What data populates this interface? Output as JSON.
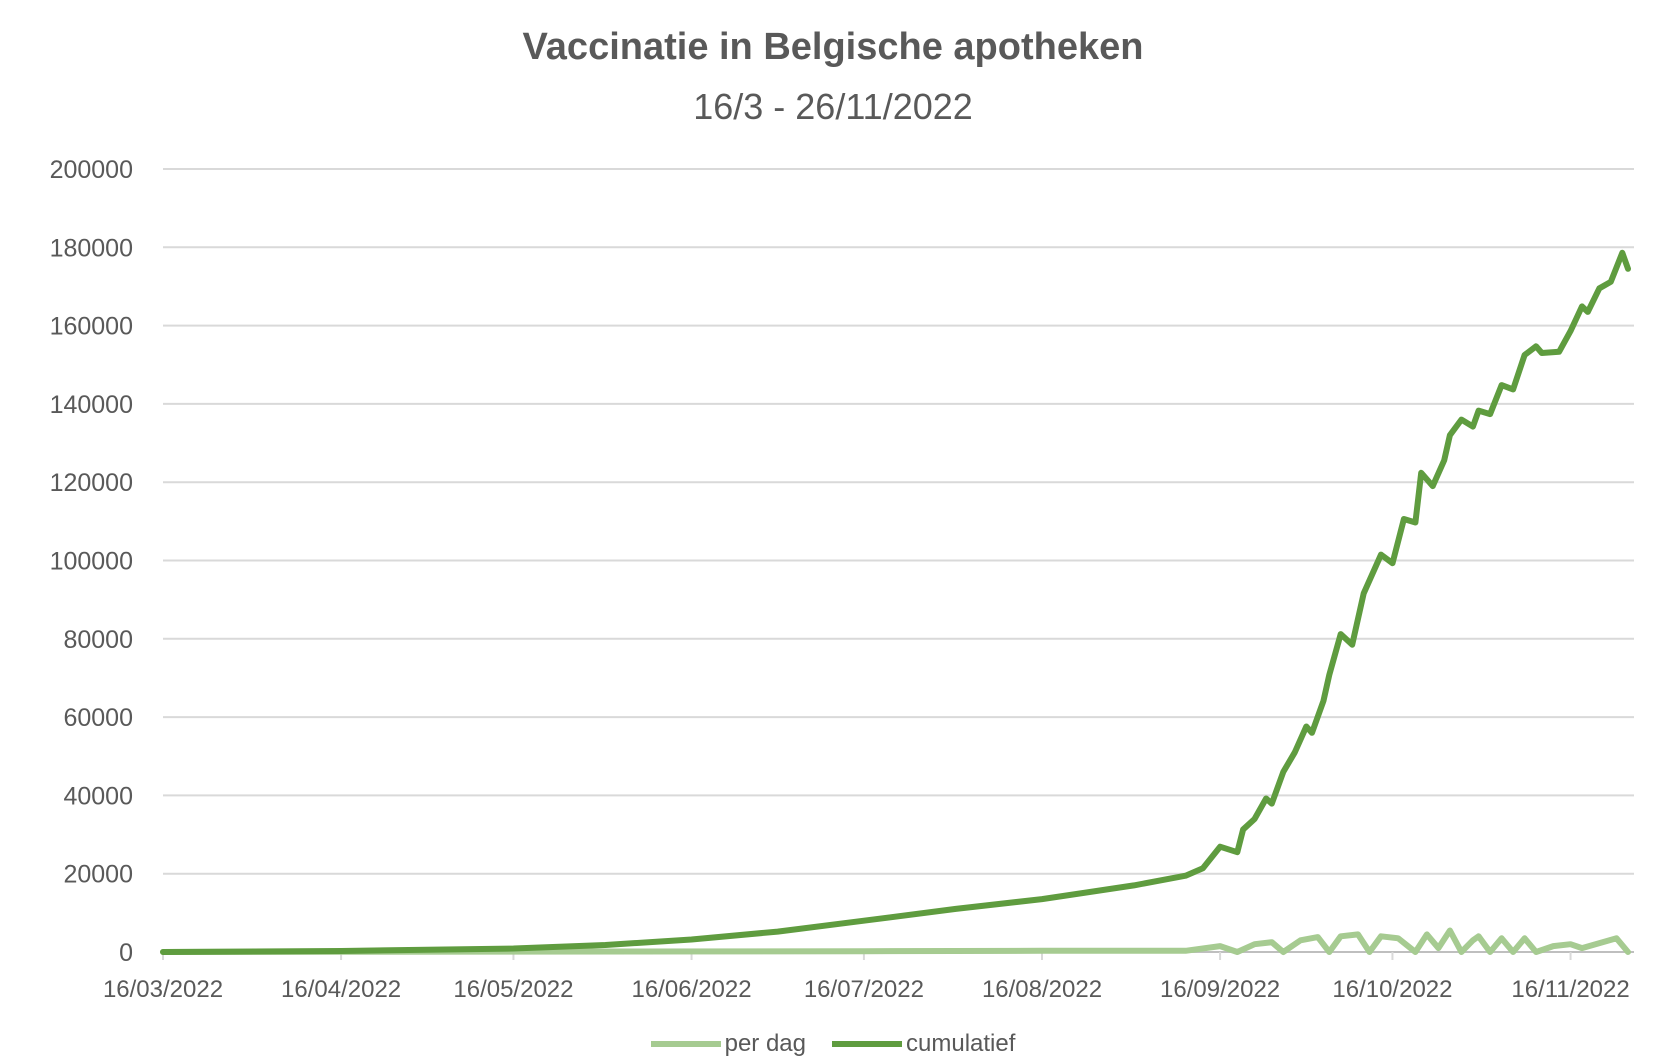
{
  "chart_data": {
    "type": "line",
    "title": "Vaccinatie in Belgische apotheken",
    "subtitle": "16/3 - 26/11/2022",
    "xlabel": "",
    "ylabel": "",
    "ylim": [
      0,
      200000
    ],
    "yticks": [
      "0",
      "20000",
      "40000",
      "60000",
      "80000",
      "100000",
      "120000",
      "140000",
      "160000",
      "180000",
      "200000"
    ],
    "xticks": [
      "16/03/2022",
      "16/04/2022",
      "16/05/2022",
      "16/06/2022",
      "16/07/2022",
      "16/08/2022",
      "16/09/2022",
      "16/10/2022",
      "16/11/2022"
    ],
    "xlim": [
      "16/03/2022",
      "26/11/2022"
    ],
    "grid": true,
    "legend_position": "bottom",
    "series": [
      {
        "name": "per dag",
        "color": "#a6cb91",
        "x": [
          "16/03/2022",
          "16/05/2022",
          "16/07/2022",
          "16/08/2022",
          "10/09/2022",
          "16/09/2022",
          "19/09/2022",
          "22/09/2022",
          "25/09/2022",
          "27/09/2022",
          "30/09/2022",
          "03/10/2022",
          "05/10/2022",
          "07/10/2022",
          "10/10/2022",
          "12/10/2022",
          "14/10/2022",
          "17/10/2022",
          "20/10/2022",
          "22/10/2022",
          "24/10/2022",
          "26/10/2022",
          "28/10/2022",
          "30/10/2022",
          "31/10/2022",
          "02/11/2022",
          "04/11/2022",
          "06/11/2022",
          "08/11/2022",
          "10/11/2022",
          "13/11/2022",
          "16/11/2022",
          "18/11/2022",
          "24/11/2022",
          "26/11/2022"
        ],
        "values": [
          0,
          100,
          200,
          300,
          300,
          1500,
          0,
          2000,
          2500,
          0,
          3000,
          3800,
          0,
          4000,
          4500,
          0,
          4000,
          3500,
          0,
          4500,
          1000,
          5500,
          0,
          3000,
          4000,
          0,
          3500,
          0,
          3500,
          0,
          1500,
          2000,
          1000,
          3500,
          0
        ]
      },
      {
        "name": "cumulatief",
        "color": "#5f9c3f",
        "x": [
          "16/03/2022",
          "16/04/2022",
          "16/05/2022",
          "01/06/2022",
          "16/06/2022",
          "01/07/2022",
          "16/07/2022",
          "01/08/2022",
          "16/08/2022",
          "01/09/2022",
          "10/09/2022",
          "13/09/2022",
          "16/09/2022",
          "19/09/2022",
          "20/09/2022",
          "22/09/2022",
          "24/09/2022",
          "25/09/2022",
          "27/09/2022",
          "29/09/2022",
          "01/10/2022",
          "02/10/2022",
          "04/10/2022",
          "05/10/2022",
          "07/10/2022",
          "09/10/2022",
          "11/10/2022",
          "14/10/2022",
          "16/10/2022",
          "18/10/2022",
          "20/10/2022",
          "21/10/2022",
          "23/10/2022",
          "25/10/2022",
          "26/10/2022",
          "28/10/2022",
          "30/10/2022",
          "31/10/2022",
          "02/11/2022",
          "04/11/2022",
          "06/11/2022",
          "08/11/2022",
          "10/11/2022",
          "11/11/2022",
          "14/11/2022",
          "16/11/2022",
          "18/11/2022",
          "19/11/2022",
          "21/11/2022",
          "23/11/2022",
          "25/11/2022",
          "26/11/2022"
        ],
        "values": [
          0,
          250,
          900,
          1800,
          3200,
          5200,
          8000,
          11000,
          13500,
          17000,
          19500,
          21400,
          26900,
          25500,
          31300,
          34000,
          39200,
          37900,
          46000,
          51000,
          57600,
          56000,
          64200,
          70800,
          81200,
          78500,
          91600,
          101500,
          99300,
          110600,
          109700,
          122400,
          119000,
          125600,
          132000,
          136000,
          134200,
          138300,
          137400,
          144800,
          143700,
          152500,
          154700,
          153000,
          153300,
          158600,
          164900,
          163500,
          169500,
          171200,
          178600,
          174500
        ]
      }
    ]
  }
}
